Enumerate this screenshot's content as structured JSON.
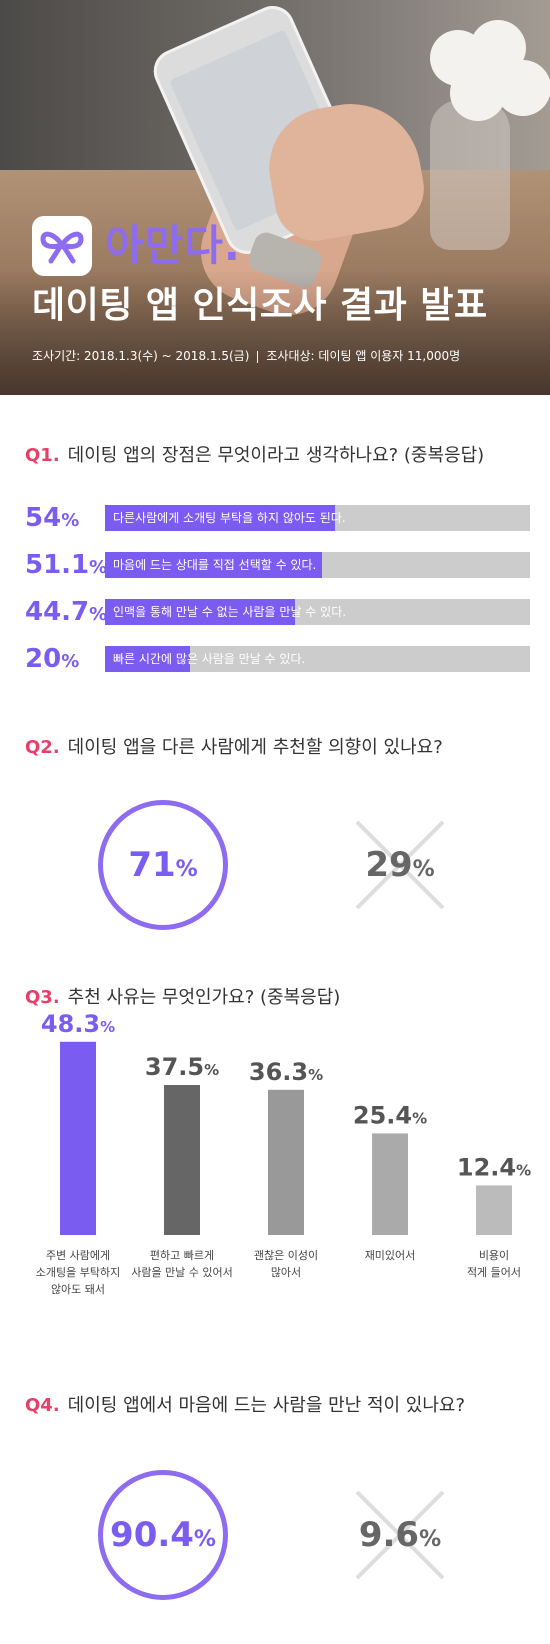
{
  "header": {
    "brand": "아만다.",
    "headline": "데이팅 앱 인식조사 결과 발표",
    "period": "조사기간: 2018.1.3(수) ~ 2018.1.5(금)",
    "target": "조사대상: 데이팅 앱 이용자 11,000명",
    "logo_icon": "ribbon-icon",
    "colors": {
      "accent": "#7b5cf0",
      "question_number": "#e83e6a",
      "track": "#cccccc"
    }
  },
  "chart_data": [
    {
      "type": "bar",
      "orientation": "horizontal",
      "question_number": "Q1.",
      "title": "데이팅 앱의 장점은 무엇이라고 생각하나요? (중복응답)",
      "unit": "%",
      "categories": [
        "다른사람에게 소개팅 부탁을 하지 않아도 된다.",
        "마음에 드는 상대를 직접 선택할 수 있다.",
        "인맥을 통해 만날 수 없는 사람을 만날 수 있다.",
        "빠른 시간에 많은 사람을 만날 수 있다."
      ],
      "values": [
        54,
        51.1,
        44.7,
        20
      ],
      "value_labels": [
        "54",
        "51.1",
        "44.7",
        "20"
      ],
      "xlim": [
        0,
        100
      ]
    },
    {
      "type": "pie",
      "question_number": "Q2.",
      "title": "데이팅 앱을 다른 사람에게 추천할 의향이 있나요?",
      "unit": "%",
      "values": [
        71,
        29
      ],
      "value_labels": [
        "71",
        "29"
      ],
      "markers": [
        "circle",
        "x"
      ]
    },
    {
      "type": "bar",
      "orientation": "vertical",
      "question_number": "Q3.",
      "title": "추천 사유는 무엇인가요? (중복응답)",
      "unit": "%",
      "categories": [
        [
          "주변 사람에게",
          "소개팅을 부탁하지",
          "않아도 돼서"
        ],
        [
          "편하고 빠르게",
          "사람을 만날 수 있어서"
        ],
        [
          "괜찮은 이성이",
          "많아서"
        ],
        [
          "재미있어서"
        ],
        [
          "비용이",
          "적게 들어서"
        ]
      ],
      "values": [
        48.3,
        37.5,
        36.3,
        25.4,
        12.4
      ],
      "value_labels": [
        "48.3",
        "37.5",
        "36.3",
        "25.4",
        "12.4"
      ],
      "colors": [
        "#7b5cf0",
        "#666666",
        "#999999",
        "#aaaaaa",
        "#bbbbbb"
      ],
      "ylim": [
        0,
        50
      ]
    },
    {
      "type": "pie",
      "question_number": "Q4.",
      "title": "데이팅 앱에서 마음에 드는 사람을 만난 적이 있나요?",
      "unit": "%",
      "values": [
        90.4,
        9.6
      ],
      "value_labels": [
        "90.4",
        "9.6"
      ],
      "markers": [
        "circle",
        "x"
      ]
    }
  ]
}
